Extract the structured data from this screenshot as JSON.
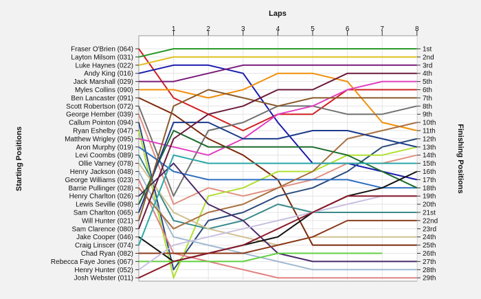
{
  "chart_data": {
    "type": "line",
    "title": "Laps",
    "ylabel_left": "Starting Positions",
    "ylabel_right": "Finishing Positions",
    "x_ticks": [
      "1",
      "2",
      "3",
      "4",
      "5",
      "6",
      "7",
      "8"
    ],
    "xlim": [
      0,
      8
    ],
    "ylim": [
      1,
      29
    ],
    "y_inverted": true,
    "grid": true,
    "finishing_positions": [
      "1st",
      "2nd",
      "3rd",
      "4th",
      "5th",
      "6th",
      "7th",
      "8th",
      "9th",
      "10th",
      "11th",
      "12th",
      "13th",
      "14th",
      "15th",
      "16th",
      "17th",
      "18th",
      "19th",
      "20th",
      "21st",
      "22nd",
      "23rd",
      "24th",
      "25th",
      "26th",
      "27th",
      "28th",
      "29th"
    ],
    "series": [
      {
        "name": "Fraser O'Brien (064)",
        "color": "#d02020",
        "values": [
          1,
          7,
          9,
          11,
          9,
          9,
          6,
          6,
          6
        ]
      },
      {
        "name": "Layton Milsom (031)",
        "color": "#2a9a2a",
        "values": [
          2,
          1,
          1,
          1,
          1,
          1,
          1,
          1,
          1
        ]
      },
      {
        "name": "Luke Haynes (022)",
        "color": "#e0c020",
        "values": [
          3,
          2,
          2,
          2,
          2,
          2,
          2,
          2,
          2
        ]
      },
      {
        "name": "Andy King (016)",
        "color": "#1a1ab0",
        "values": [
          4,
          3,
          3,
          4,
          10,
          15,
          15,
          16,
          17
        ]
      },
      {
        "name": "Jack Marshall (029)",
        "color": "#7a1a7a",
        "values": [
          5,
          5,
          4,
          3,
          3,
          3,
          3,
          3,
          3
        ]
      },
      {
        "name": "Myles Collins (090)",
        "color": "#f0900a",
        "values": [
          6,
          6,
          7,
          6,
          4,
          4,
          5,
          10,
          11
        ]
      },
      {
        "name": "Ben Lancaster (091)",
        "color": "#7a2a0a",
        "values": [
          7,
          9,
          12,
          14,
          17,
          25,
          25,
          25,
          25
        ]
      },
      {
        "name": "Scott Robertson (072)",
        "color": "#707070",
        "values": [
          8,
          19,
          11,
          10,
          8,
          8,
          9,
          9,
          8
        ]
      },
      {
        "name": "George Hember (039)",
        "color": "#e09080",
        "values": [
          9,
          20,
          18,
          19,
          18,
          17,
          15,
          15,
          14
        ]
      },
      {
        "name": "Callum Pointon (094)",
        "color": "#2a4a7a",
        "values": [
          10,
          28,
          22,
          21,
          19,
          18,
          16,
          13,
          12
        ]
      },
      {
        "name": "Ryan Eshelby (047)",
        "color": "#b0e030",
        "values": [
          11,
          29,
          19,
          18,
          16,
          16,
          14,
          14,
          13
        ]
      },
      {
        "name": "Matthew Wrigley (095)",
        "color": "#e040c0",
        "values": [
          12,
          13,
          14,
          12,
          9,
          8,
          6,
          5,
          5
        ]
      },
      {
        "name": "Aron Murphy (019)",
        "color": "#3070c0",
        "values": [
          13,
          16,
          17,
          17,
          17,
          17,
          17,
          18,
          18
        ]
      },
      {
        "name": "Levi Coombs (089)",
        "color": "#3a8a8a",
        "values": [
          14,
          22,
          23,
          22,
          20,
          21,
          21,
          21,
          21
        ]
      },
      {
        "name": "Ollie Varney (078)",
        "color": "#d0c090",
        "values": [
          15,
          21,
          23,
          24,
          25,
          24,
          24,
          24,
          24
        ]
      },
      {
        "name": "Henry Jackson (048)",
        "color": "#a0b8d0",
        "values": [
          16,
          24,
          25,
          26,
          27,
          28,
          28,
          28,
          28
        ]
      },
      {
        "name": "George Williams (023)",
        "color": "#e08080",
        "values": [
          17,
          26,
          27,
          28,
          29,
          29,
          29,
          29,
          29
        ]
      },
      {
        "name": "Barrie Pullinger (028)",
        "color": "#a87040",
        "values": [
          18,
          23,
          21,
          20,
          18,
          16,
          12,
          11,
          10
        ]
      },
      {
        "name": "Henry Charlton (026)",
        "color": "#4a2a6a",
        "values": [
          19,
          15,
          20,
          22,
          26,
          27,
          27,
          27,
          27
        ]
      },
      {
        "name": "Lewis Seville (098)",
        "color": "#1a6a2a",
        "values": [
          20,
          11,
          13,
          13,
          13,
          13,
          14,
          16,
          18
        ]
      },
      {
        "name": "Sam Charlton (065)",
        "color": "#1a3a8a",
        "values": [
          21,
          10,
          10,
          12,
          12,
          11,
          11,
          12,
          13
        ]
      },
      {
        "name": "Will Hunter (021)",
        "color": "#8a5a2a",
        "values": [
          22,
          8,
          6,
          7,
          8,
          7,
          7,
          7,
          7
        ]
      },
      {
        "name": "Sam Clarence (080)",
        "color": "#6a1a3a",
        "values": [
          23,
          12,
          9,
          8,
          6,
          6,
          4,
          4,
          4
        ]
      },
      {
        "name": "Jake Cooper (046)",
        "color": "#111111",
        "values": [
          24,
          27,
          26,
          25,
          24,
          21,
          19,
          18,
          16
        ]
      },
      {
        "name": "Craig Linscer (074)",
        "color": "#2aa8a8",
        "values": [
          25,
          14,
          15,
          15,
          15,
          15,
          15,
          15,
          15
        ]
      },
      {
        "name": "Chad Ryan (082)",
        "color": "#8a3a1a",
        "values": [
          26,
          26,
          26,
          26,
          25,
          24,
          22,
          22,
          22
        ]
      },
      {
        "name": "Rebecca Faye Jones (067)",
        "color": "#60d040",
        "values": [
          27,
          27,
          27,
          27,
          26,
          26,
          26,
          26
        ]
      },
      {
        "name": "Henry Hunter (052)",
        "color": "#c8c0e0",
        "values": [
          28,
          25,
          24,
          23,
          22,
          21,
          20,
          19,
          19
        ]
      },
      {
        "name": "Josh Webster (011)",
        "color": "#8a1a2a",
        "values": [
          29,
          27,
          26,
          25,
          23,
          21,
          19,
          19,
          19
        ]
      }
    ]
  }
}
